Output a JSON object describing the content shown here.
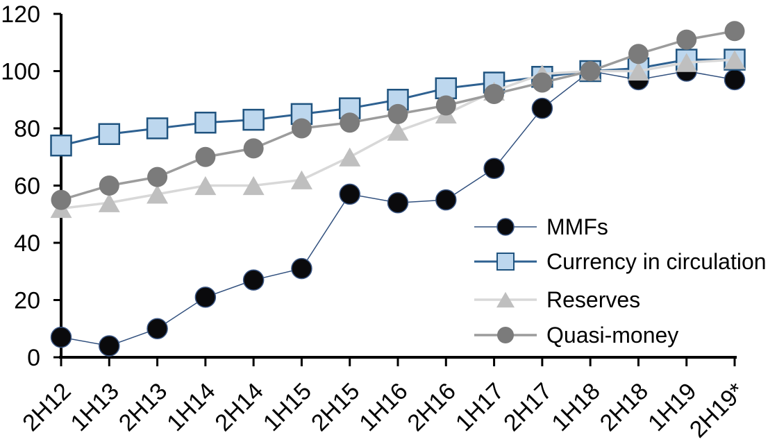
{
  "chart_data": {
    "type": "line",
    "categories": [
      "2H12",
      "1H13",
      "2H13",
      "1H14",
      "2H14",
      "1H15",
      "2H15",
      "1H16",
      "2H16",
      "1H17",
      "2H17",
      "1H18",
      "2H18",
      "1H19",
      "2H19*"
    ],
    "series": [
      {
        "name": "MMFs",
        "values": [
          7,
          4,
          10,
          21,
          27,
          31,
          57,
          54,
          55,
          66,
          87,
          100,
          97,
          100,
          97
        ],
        "marker": "circle",
        "line_color": "#31507E",
        "line_width": 1.5,
        "marker_fill": "#0a0a0c",
        "marker_stroke": "#3A5684",
        "marker_stroke_width": 1.5
      },
      {
        "name": "Currency in circulation",
        "values": [
          74,
          78,
          80,
          82,
          83,
          85,
          87,
          90,
          94,
          96,
          98,
          100,
          101,
          104,
          104
        ],
        "marker": "square",
        "line_color": "#2E6191",
        "line_width": 3,
        "marker_fill": "#BDD7EE",
        "marker_stroke": "#1F537F",
        "marker_stroke_width": 2.5
      },
      {
        "name": "Reserves",
        "values": [
          52,
          54,
          57,
          60,
          60,
          62,
          70,
          79,
          85,
          93,
          99,
          100,
          100,
          103,
          104
        ],
        "marker": "triangle",
        "line_color": "#D8D8D8",
        "line_width": 3.5,
        "marker_fill": "#BFBFBF",
        "marker_stroke": "none",
        "marker_stroke_width": 0
      },
      {
        "name": "Quasi-money",
        "values": [
          55,
          60,
          63,
          70,
          73,
          80,
          82,
          85,
          88,
          92,
          96,
          100,
          106,
          111,
          114
        ],
        "marker": "circle",
        "line_color": "#9C9C9C",
        "line_width": 3.5,
        "marker_fill": "#7B7B7B",
        "marker_stroke": "none",
        "marker_stroke_width": 0
      }
    ],
    "ylim": [
      0,
      120
    ],
    "yticks": [
      0,
      20,
      40,
      60,
      80,
      100,
      120
    ],
    "grid": false,
    "legend_position": "center-right",
    "axis_color": "#000000",
    "tick_label_color": "#000000"
  }
}
